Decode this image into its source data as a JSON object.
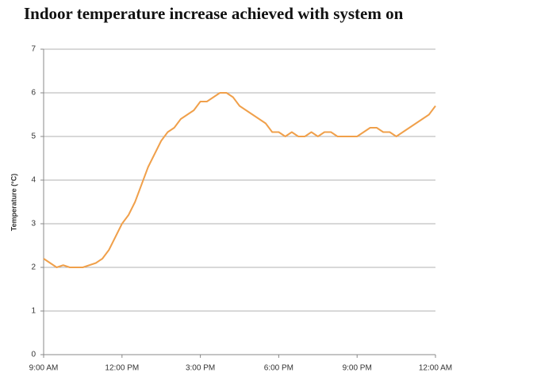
{
  "chart_data": {
    "type": "line",
    "title": "Indoor temperature increase achieved with system on",
    "ylabel": "Temperature (°C)",
    "categories": [
      "9:00 AM",
      null,
      null,
      null,
      null,
      null,
      null,
      null,
      null,
      null,
      null,
      null,
      "12:00 PM",
      null,
      null,
      null,
      null,
      null,
      null,
      null,
      null,
      null,
      null,
      null,
      "3:00 PM",
      null,
      null,
      null,
      null,
      null,
      null,
      null,
      null,
      null,
      null,
      null,
      "6:00 PM",
      null,
      null,
      null,
      null,
      null,
      null,
      null,
      null,
      null,
      null,
      null,
      "9:00 PM",
      null,
      null,
      null,
      null,
      null,
      null,
      null,
      null,
      null,
      null,
      null,
      "12:00 AM"
    ],
    "series": [
      {
        "name": "Temperature",
        "color": "#f0a04b",
        "values": [
          2.2,
          2.1,
          2.0,
          2.05,
          2.0,
          2.0,
          2.0,
          2.05,
          2.1,
          2.2,
          2.4,
          2.7,
          3.0,
          3.2,
          3.5,
          3.9,
          4.3,
          4.6,
          4.9,
          5.1,
          5.2,
          5.4,
          5.5,
          5.6,
          5.8,
          5.8,
          5.9,
          6.0,
          6.0,
          5.9,
          5.7,
          5.6,
          5.5,
          5.4,
          5.3,
          5.1,
          5.1,
          5.0,
          5.1,
          5.0,
          5.0,
          5.1,
          5.0,
          5.1,
          5.1,
          5.0,
          5.0,
          5.0,
          5.0,
          5.1,
          5.2,
          5.2,
          5.1,
          5.1,
          5.0,
          5.1,
          5.2,
          5.3,
          5.4,
          5.5,
          5.7
        ]
      }
    ],
    "ylim": [
      0,
      7
    ],
    "yticks": [
      0,
      1,
      2,
      3,
      4,
      5,
      6,
      7
    ],
    "grid": true
  }
}
